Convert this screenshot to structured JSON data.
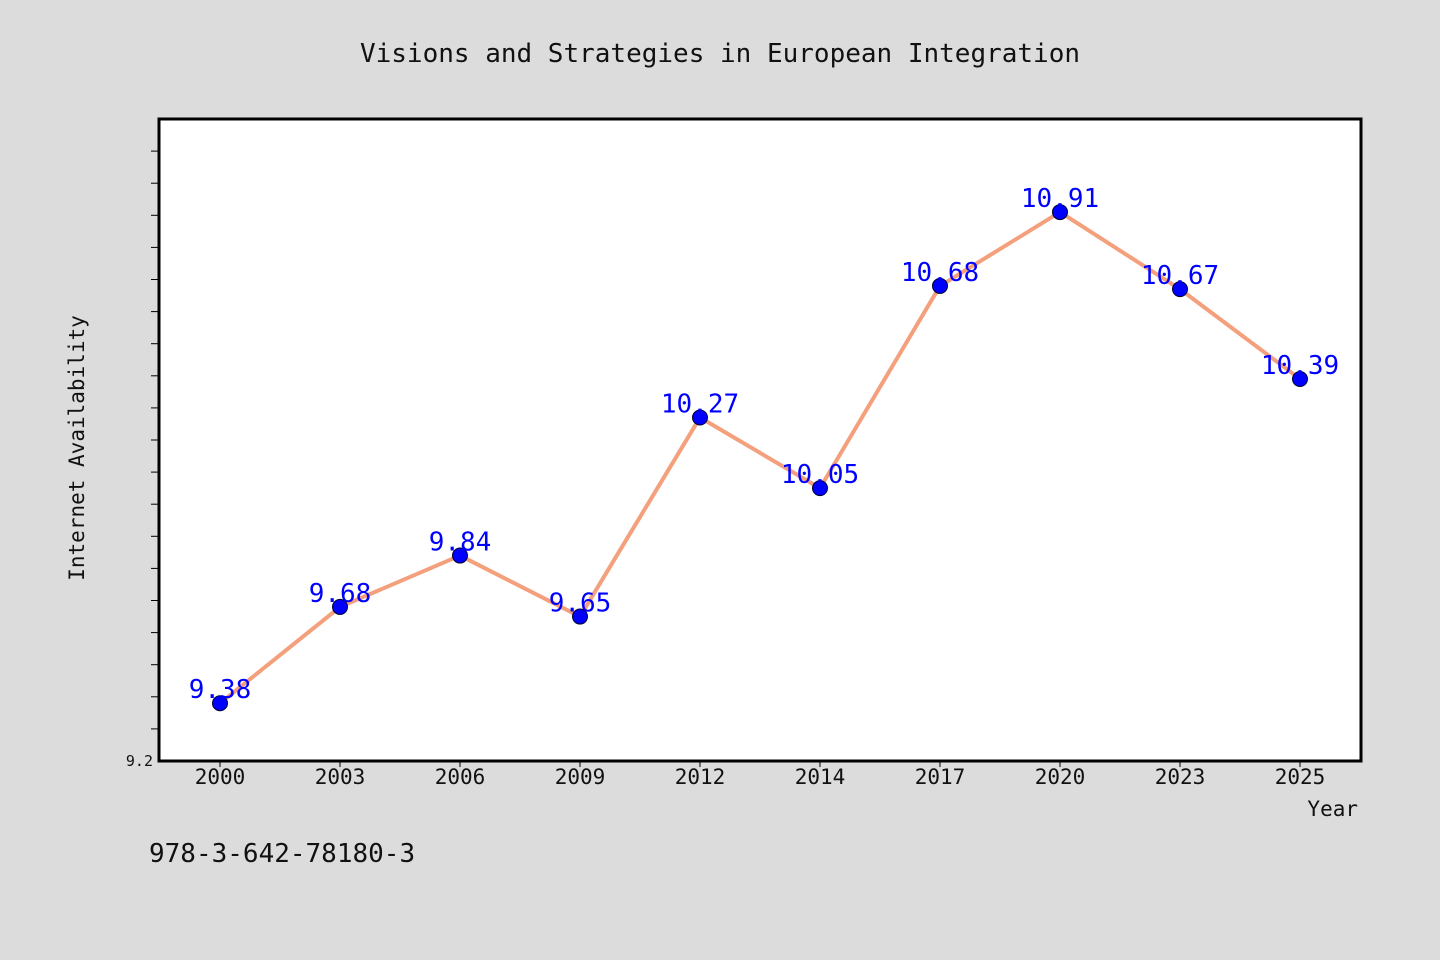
{
  "chart_data": {
    "type": "line",
    "title": "Visions and Strategies in European Integration",
    "xlabel": "Year",
    "ylabel": "Internet Availability",
    "categories": [
      "2000",
      "2003",
      "2006",
      "2009",
      "2012",
      "2014",
      "2017",
      "2020",
      "2023",
      "2025"
    ],
    "series": [
      {
        "values": [
          9.38,
          9.68,
          9.84,
          9.65,
          10.27,
          10.05,
          10.68,
          10.91,
          10.67,
          10.39
        ]
      }
    ],
    "data_labels": [
      "9.38",
      "9.68",
      "9.84",
      "9.65",
      "10.27",
      "10.05",
      "10.68",
      "10.91",
      "10.67",
      "10.39"
    ],
    "ylim": [
      9.2,
      11.2
    ],
    "ytick_labels": [
      "9.2"
    ],
    "grid": false,
    "colors": {
      "line": "#f4a07c",
      "marker": "#0000ff",
      "data_label": "#0000ff",
      "background": "#dcdcdc",
      "plot_background": "#ffffff"
    }
  },
  "footer": {
    "isbn": "978-3-642-78180-3"
  }
}
